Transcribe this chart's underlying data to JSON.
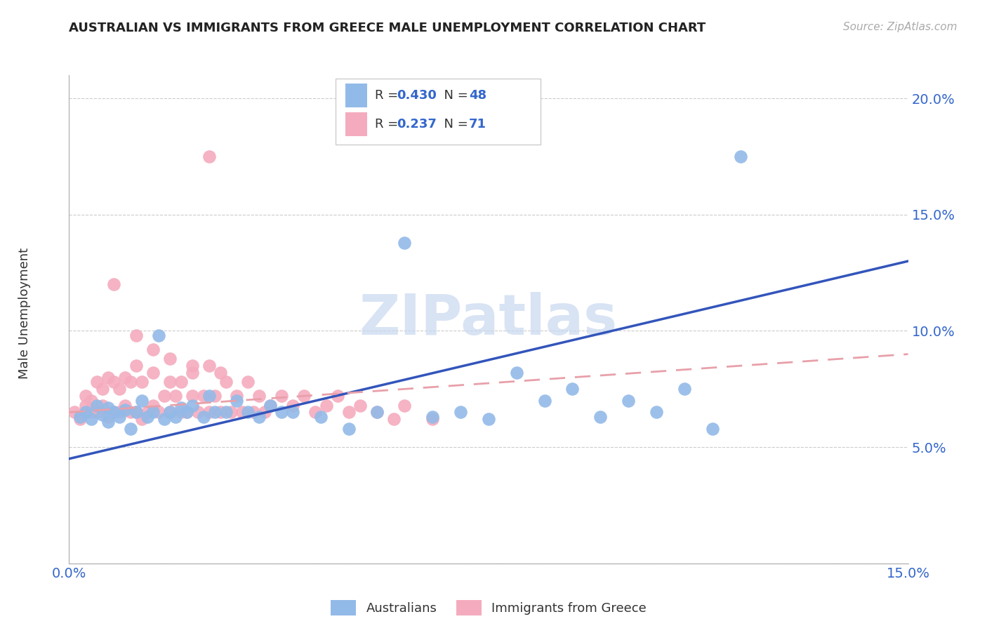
{
  "title": "AUSTRALIAN VS IMMIGRANTS FROM GREECE MALE UNEMPLOYMENT CORRELATION CHART",
  "source": "Source: ZipAtlas.com",
  "ylabel": "Male Unemployment",
  "xlim": [
    0.0,
    0.15
  ],
  "ylim": [
    0.0,
    0.21
  ],
  "legend_r1": "0.430",
  "legend_n1": "48",
  "legend_r2": "0.237",
  "legend_n2": "71",
  "blue_color": "#92BAE8",
  "pink_color": "#F4ABBE",
  "line_blue": "#3355BB",
  "line_pink": "#E8A0AA",
  "watermark_text": "ZIPatlas",
  "watermark_color": "#C8D8F0",
  "background_color": "#FFFFFF",
  "blue_label": "Australians",
  "pink_label": "Immigrants from Greece",
  "blue_x": [
    0.002,
    0.003,
    0.004,
    0.005,
    0.006,
    0.007,
    0.007,
    0.008,
    0.009,
    0.01,
    0.011,
    0.012,
    0.013,
    0.014,
    0.015,
    0.016,
    0.017,
    0.018,
    0.019,
    0.02,
    0.021,
    0.022,
    0.024,
    0.025,
    0.026,
    0.028,
    0.03,
    0.032,
    0.034,
    0.036,
    0.038,
    0.04,
    0.045,
    0.05,
    0.055,
    0.06,
    0.065,
    0.07,
    0.075,
    0.08,
    0.085,
    0.09,
    0.095,
    0.1,
    0.105,
    0.11,
    0.115,
    0.12
  ],
  "blue_y": [
    0.063,
    0.065,
    0.062,
    0.068,
    0.064,
    0.061,
    0.067,
    0.065,
    0.063,
    0.066,
    0.058,
    0.065,
    0.07,
    0.063,
    0.065,
    0.098,
    0.062,
    0.065,
    0.063,
    0.067,
    0.065,
    0.068,
    0.063,
    0.072,
    0.065,
    0.065,
    0.07,
    0.065,
    0.063,
    0.068,
    0.065,
    0.065,
    0.063,
    0.058,
    0.065,
    0.138,
    0.063,
    0.065,
    0.062,
    0.082,
    0.07,
    0.075,
    0.063,
    0.07,
    0.065,
    0.075,
    0.058,
    0.175
  ],
  "pink_x": [
    0.001,
    0.002,
    0.003,
    0.003,
    0.004,
    0.004,
    0.005,
    0.005,
    0.006,
    0.006,
    0.007,
    0.007,
    0.008,
    0.008,
    0.009,
    0.009,
    0.01,
    0.01,
    0.011,
    0.011,
    0.012,
    0.012,
    0.013,
    0.013,
    0.014,
    0.015,
    0.015,
    0.016,
    0.017,
    0.018,
    0.018,
    0.019,
    0.02,
    0.02,
    0.021,
    0.022,
    0.022,
    0.023,
    0.024,
    0.025,
    0.025,
    0.026,
    0.027,
    0.028,
    0.029,
    0.03,
    0.031,
    0.032,
    0.033,
    0.034,
    0.035,
    0.036,
    0.038,
    0.04,
    0.042,
    0.044,
    0.046,
    0.048,
    0.05,
    0.052,
    0.055,
    0.058,
    0.06,
    0.065,
    0.025,
    0.008,
    0.012,
    0.015,
    0.018,
    0.022,
    0.027
  ],
  "pink_y": [
    0.065,
    0.062,
    0.068,
    0.072,
    0.065,
    0.07,
    0.065,
    0.078,
    0.068,
    0.075,
    0.063,
    0.08,
    0.065,
    0.078,
    0.065,
    0.075,
    0.068,
    0.08,
    0.065,
    0.078,
    0.065,
    0.085,
    0.062,
    0.078,
    0.065,
    0.068,
    0.082,
    0.065,
    0.072,
    0.065,
    0.078,
    0.072,
    0.065,
    0.078,
    0.065,
    0.072,
    0.082,
    0.065,
    0.072,
    0.065,
    0.085,
    0.072,
    0.065,
    0.078,
    0.065,
    0.072,
    0.065,
    0.078,
    0.065,
    0.072,
    0.065,
    0.068,
    0.072,
    0.068,
    0.072,
    0.065,
    0.068,
    0.072,
    0.065,
    0.068,
    0.065,
    0.062,
    0.068,
    0.062,
    0.175,
    0.12,
    0.098,
    0.092,
    0.088,
    0.085,
    0.082
  ]
}
